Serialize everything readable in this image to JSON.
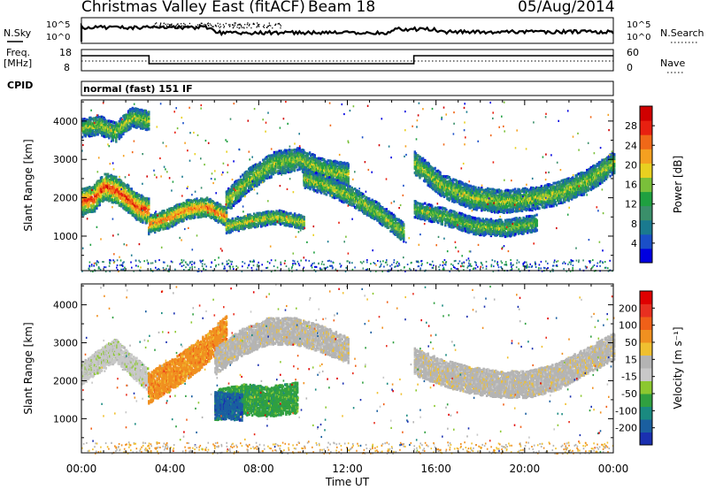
{
  "header": {
    "title": "Christmas Valley East (fitACF)",
    "beam": "Beam 18",
    "date": "05/Aug/2014"
  },
  "strip1": {
    "left_label": "N.Sky",
    "left_ticks": [
      "10^5",
      "10^0"
    ],
    "right_ticks": [
      "10^5",
      "10^0"
    ],
    "right_label": "N.Search"
  },
  "strip2": {
    "left_label_1": "Freq.",
    "left_label_2": "[MHz]",
    "left_ticks": [
      "18",
      "8"
    ],
    "right_ticks": [
      "60",
      "0"
    ],
    "right_label": "Nave"
  },
  "cpid": {
    "label": "CPID",
    "mode": "normal (fast) 151 IF"
  },
  "colors": {
    "power": [
      "#0000e0",
      "#1a4fc8",
      "#1a7a8f",
      "#3a8f6a",
      "#1fa040",
      "#7ac03a",
      "#e8d020",
      "#f5a020",
      "#f06818",
      "#e82010",
      "#d00000"
    ],
    "velocity": [
      "#1a30b0",
      "#1a5fa0",
      "#1a8a80",
      "#30a040",
      "#8cc830",
      "#c8c8c8",
      "#b4b4b4",
      "#f0c030",
      "#f09020",
      "#f06018",
      "#e83020",
      "#e00000"
    ],
    "stripe": "#000000"
  },
  "chart_data": [
    {
      "type": "heatmap",
      "panel": "power",
      "ylabel": "Slant Range [km]",
      "xlabel": "",
      "ylim": [
        100,
        4550
      ],
      "y_ticks": [
        "1000",
        "2000",
        "3000",
        "4000"
      ],
      "colorbar_label": "Power [dB]",
      "colorbar_ticks": [
        "28",
        "24",
        "20",
        "16",
        "12",
        "8",
        "4"
      ],
      "echo_bands": [
        {
          "t0": 0.0,
          "t1": 3.0,
          "center": [
            1900,
            1950,
            2300,
            2200,
            2000,
            1750,
            1650
          ],
          "width": 350,
          "level": 0.9
        },
        {
          "t0": 0.0,
          "t1": 3.0,
          "center": [
            3800,
            3900,
            3700,
            4100,
            4000
          ],
          "width": 250,
          "level": 0.55
        },
        {
          "t0": 3.0,
          "t1": 6.5,
          "center": [
            1300,
            1450,
            1700,
            1750,
            1500
          ],
          "width": 250,
          "level": 0.8
        },
        {
          "t0": 6.5,
          "t1": 12.0,
          "center": [
            1900,
            2500,
            2900,
            3000,
            2700,
            2600
          ],
          "width": 300,
          "level": 0.55
        },
        {
          "t0": 6.5,
          "t1": 10.0,
          "center": [
            1250,
            1400,
            1500,
            1350
          ],
          "width": 180,
          "level": 0.6
        },
        {
          "t0": 10.0,
          "t1": 14.5,
          "center": [
            2500,
            2300,
            2000,
            1600,
            1100
          ],
          "width": 250,
          "level": 0.55
        },
        {
          "t0": 15.0,
          "t1": 24.0,
          "center": [
            2900,
            2300,
            2000,
            1900,
            1950,
            2100,
            2400,
            2900
          ],
          "width": 300,
          "level": 0.55
        },
        {
          "t0": 15.0,
          "t1": 20.5,
          "center": [
            1700,
            1500,
            1250,
            1200,
            1350
          ],
          "width": 220,
          "level": 0.5
        }
      ]
    },
    {
      "type": "heatmap",
      "panel": "velocity",
      "xlabel": "Time UT",
      "ylabel": "Slant Range [km]",
      "ylim": [
        100,
        4550
      ],
      "y_ticks": [
        "1000",
        "2000",
        "3000",
        "4000"
      ],
      "x_ticks": [
        "00:00",
        "04:00",
        "08:00",
        "12:00",
        "16:00",
        "20:00",
        "00:00"
      ],
      "x_range_hours": [
        0,
        24
      ],
      "colorbar_label": "Velocity [m s⁻¹]",
      "colorbar_ticks": [
        "200",
        "100",
        "50",
        "15",
        "-15",
        "-50",
        "-100",
        "-200"
      ],
      "echo_bands": [
        {
          "t0": 0.0,
          "t1": 3.0,
          "center": [
            2200,
            2500,
            2800,
            2400,
            2000
          ],
          "width": 300,
          "color_index": 5
        },
        {
          "t0": 3.0,
          "t1": 6.5,
          "center": [
            1800,
            2200,
            2700,
            3300
          ],
          "width": 400,
          "color_index": 8
        },
        {
          "t0": 6.0,
          "t1": 12.0,
          "center": [
            2500,
            3000,
            3300,
            3300,
            3100,
            2800
          ],
          "width": 350,
          "color_index": 6
        },
        {
          "t0": 6.0,
          "t1": 9.7,
          "center": [
            1350,
            1500,
            1450,
            1550
          ],
          "width": 400,
          "color_index": 3
        },
        {
          "t0": 6.0,
          "t1": 7.2,
          "center": [
            1350,
            1300
          ],
          "width": 350,
          "color_index": 1
        },
        {
          "t0": 15.0,
          "t1": 24.0,
          "center": [
            2500,
            2200,
            2000,
            1900,
            1900,
            2100,
            2500,
            2900
          ],
          "width": 350,
          "color_index": 6
        }
      ]
    }
  ]
}
